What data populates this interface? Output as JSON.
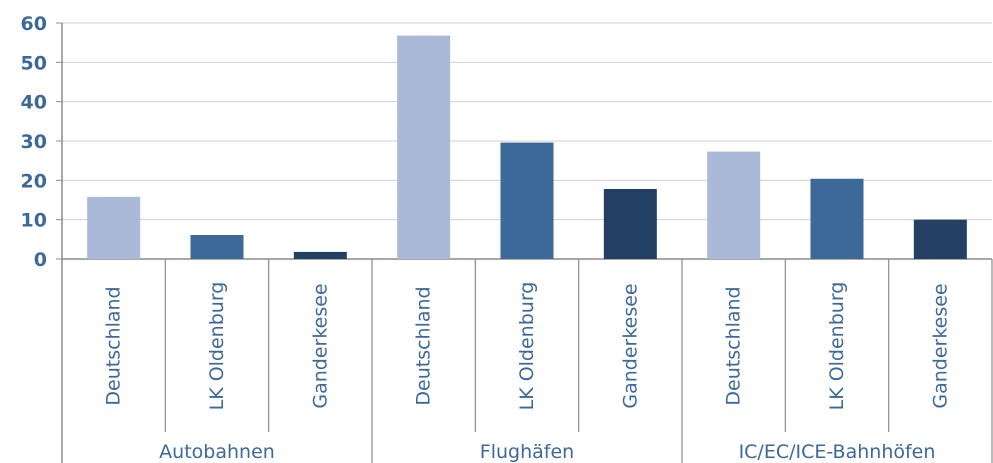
{
  "chart_data": {
    "type": "bar",
    "groups": [
      {
        "label": "Autobahnen",
        "bars": [
          {
            "category": "Deutschland",
            "value": 15.8
          },
          {
            "category": "LK Oldenburg",
            "value": 6.1
          },
          {
            "category": "Ganderkesee",
            "value": 1.8
          }
        ]
      },
      {
        "label": "Flughäfen",
        "bars": [
          {
            "category": "Deutschland",
            "value": 56.8
          },
          {
            "category": "LK Oldenburg",
            "value": 29.6
          },
          {
            "category": "Ganderkesee",
            "value": 17.8
          }
        ]
      },
      {
        "label": "IC/EC/ICE-Bahnhöfen",
        "bars": [
          {
            "category": "Deutschland",
            "value": 27.3
          },
          {
            "category": "LK Oldenburg",
            "value": 20.4
          },
          {
            "category": "Ganderkesee",
            "value": 10.0
          }
        ]
      }
    ],
    "series_colors": {
      "Deutschland": "#a9b9d7",
      "LK Oldenburg": "#3d6999",
      "Ganderkesee": "#233f63"
    },
    "ylim": [
      0,
      60
    ],
    "yticks": [
      "0",
      "10",
      "20",
      "30",
      "40",
      "50",
      "60"
    ],
    "grid": true,
    "label_color": "#3d6999",
    "grid_color": "#d0d0d0",
    "axis_color": "#8c8c8c"
  }
}
